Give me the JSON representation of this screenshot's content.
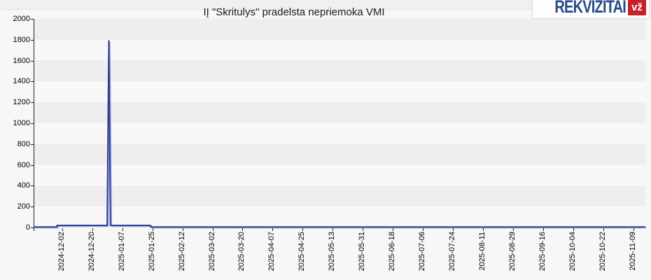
{
  "page": {
    "background": "#f7f7f7",
    "top_strip_color": "#f0f0f0"
  },
  "logo": {
    "name": "REKVIZITAI",
    "badge": "vž",
    "text_color": "#254a8c",
    "badge_color": "#c8202a"
  },
  "chart_data": {
    "type": "line",
    "title": "IĮ \"Skritulys\" pradelsta nepriemoka VMI",
    "legend": "none",
    "grid": "horizontal-bands",
    "band_colors": [
      "#eeeeee",
      "#f8f8f8"
    ],
    "line_color": "#2f3e99",
    "line_shadow_color": "#a3acd9",
    "ylim": [
      0,
      2000
    ],
    "y_ticks": [
      0,
      200,
      400,
      600,
      800,
      1000,
      1200,
      1400,
      1600,
      1800,
      2000
    ],
    "x_range": [
      "2024-11-15",
      "2025-11-16"
    ],
    "x_tick_labels": [
      "2024-12-02",
      "2024-12-20",
      "2025-01-07",
      "2025-01-25",
      "2025-02-12",
      "2025-03-02",
      "2025-03-20",
      "2025-04-07",
      "2025-04-25",
      "2025-05-13",
      "2025-05-31",
      "2025-06-18",
      "2025-07-06",
      "2025-07-24",
      "2025-08-11",
      "2025-08-29",
      "2025-09-16",
      "2025-10-04",
      "2025-10-22",
      "2025-11-09"
    ],
    "points": [
      [
        "2024-11-15",
        0
      ],
      [
        "2024-11-29",
        0
      ],
      [
        "2024-11-29",
        20
      ],
      [
        "2024-12-29",
        20
      ],
      [
        "2024-12-30",
        1790
      ],
      [
        "2024-12-31",
        20
      ],
      [
        "2025-01-24",
        20
      ],
      [
        "2025-01-24",
        0
      ],
      [
        "2025-11-16",
        0
      ]
    ]
  }
}
